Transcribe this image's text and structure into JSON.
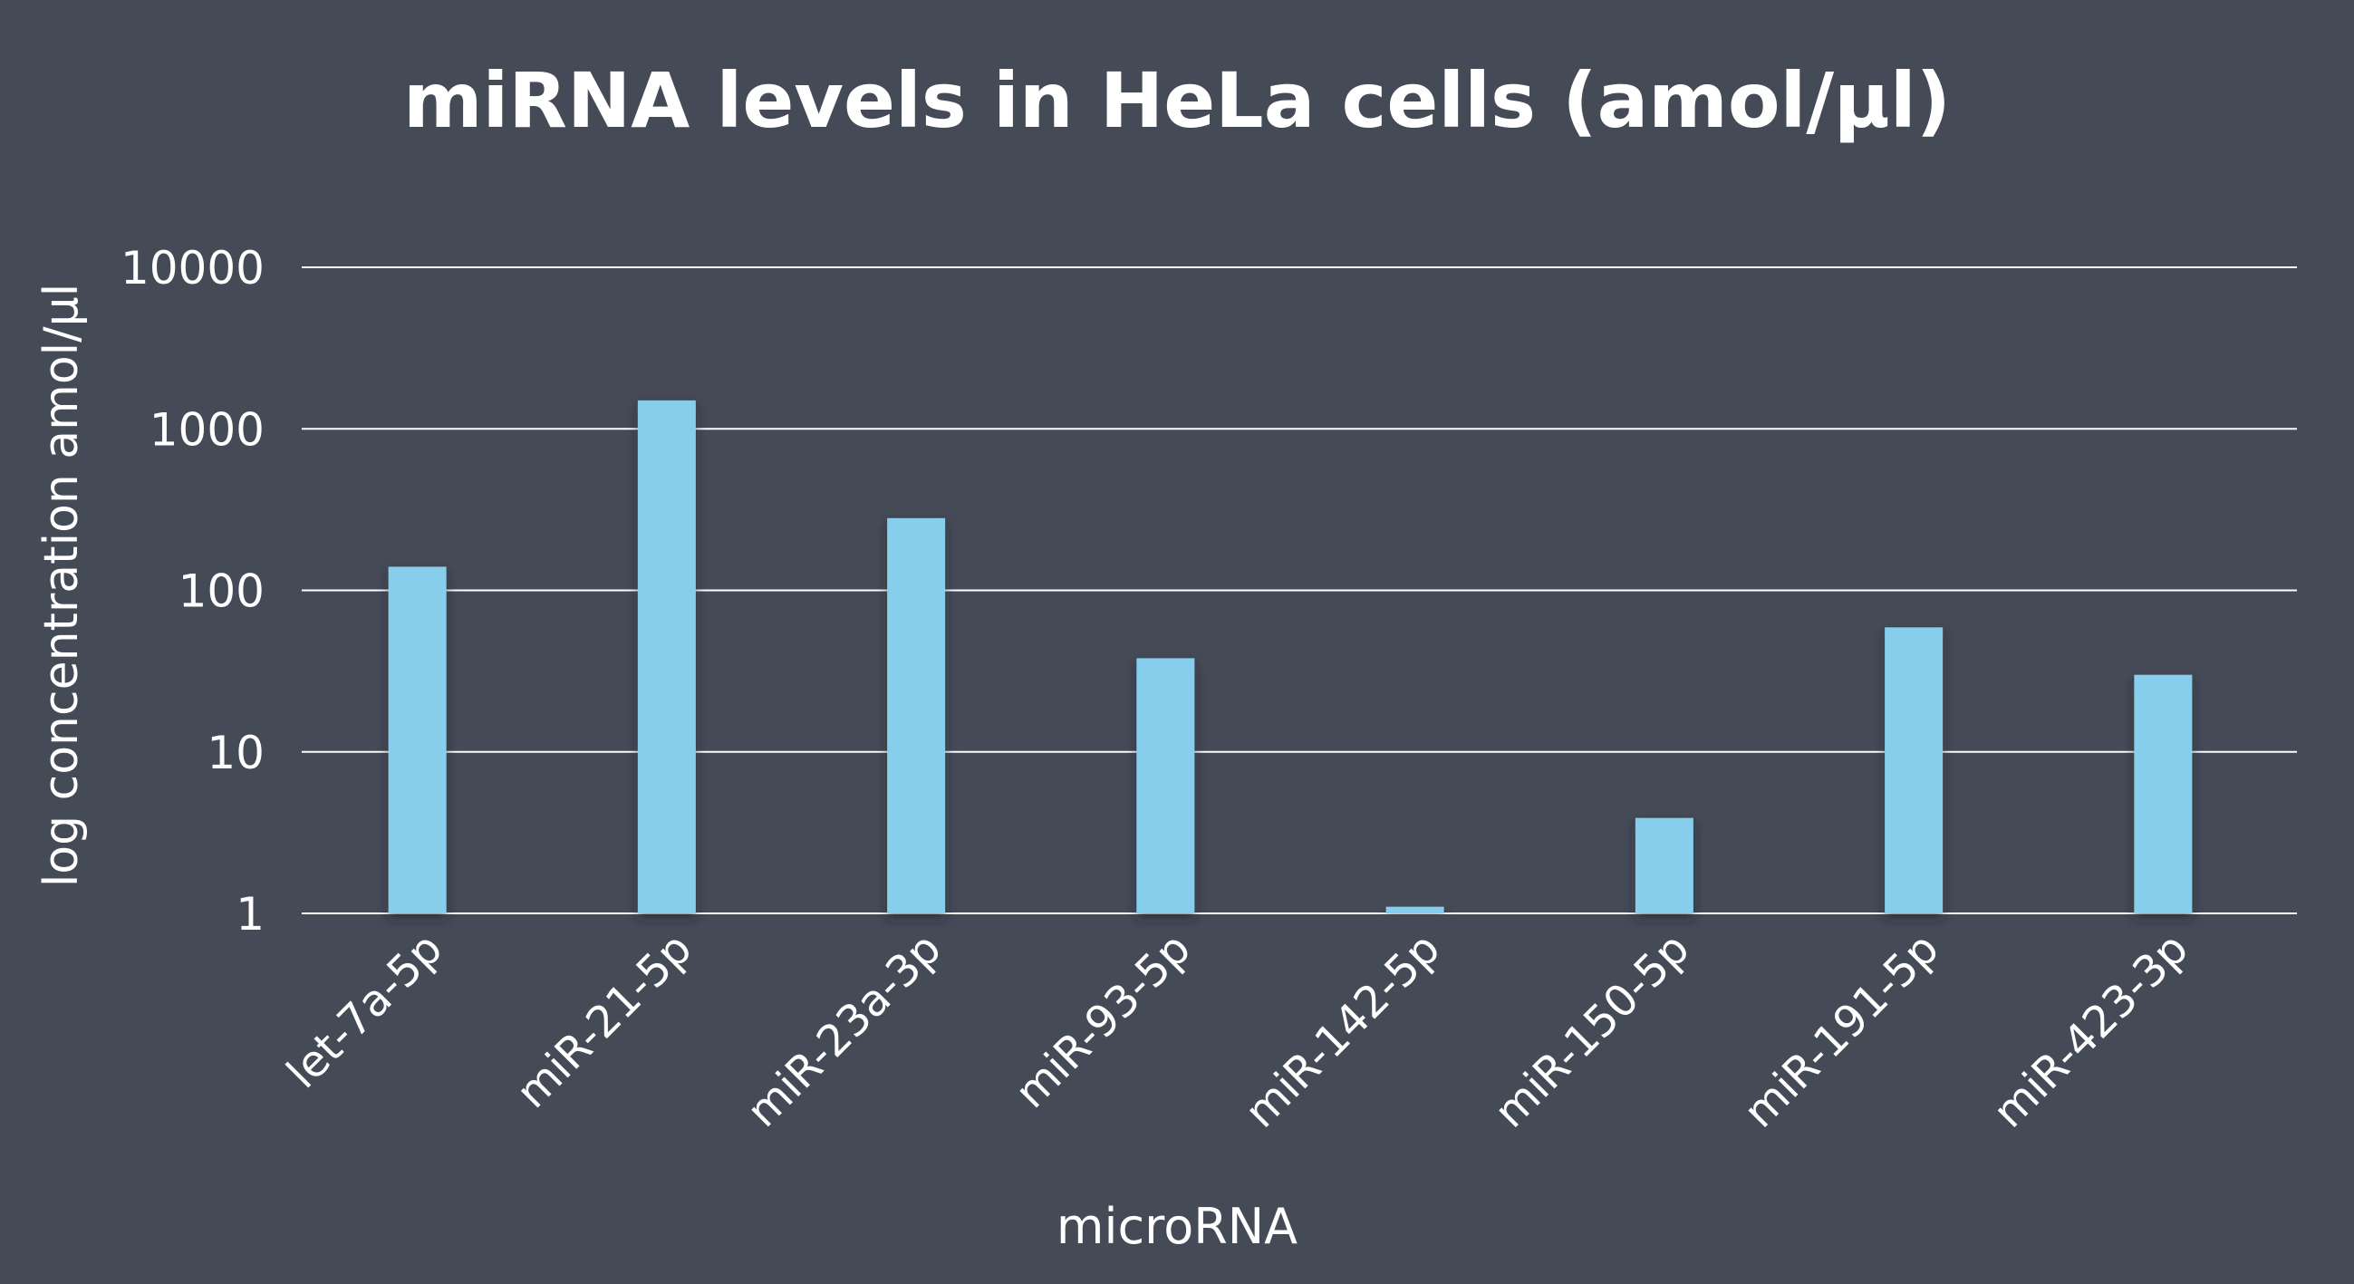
{
  "chart_data": {
    "type": "bar",
    "title": "miRNA levels in HeLa cells (amol/µl)",
    "xlabel": "microRNA",
    "ylabel": "log concentration amol/µl",
    "yscale": "log",
    "ylim": [
      1,
      10000
    ],
    "yticks": [
      "10000",
      "1000",
      "100",
      "10",
      "1"
    ],
    "grid": true,
    "categories": [
      "let-7a-5p",
      "miR-21-5p",
      "miR-23a-3p",
      "miR-93-5p",
      "miR-142-5p",
      "miR-150-5p",
      "miR-191-5p",
      "miR-423-3p"
    ],
    "values": [
      140,
      1500,
      280,
      38,
      1.1,
      3.9,
      59,
      30
    ],
    "colors": {
      "background": "#454a57",
      "bar": "#87ceec",
      "text": "#ffffff",
      "grid": "#ffffff"
    }
  }
}
